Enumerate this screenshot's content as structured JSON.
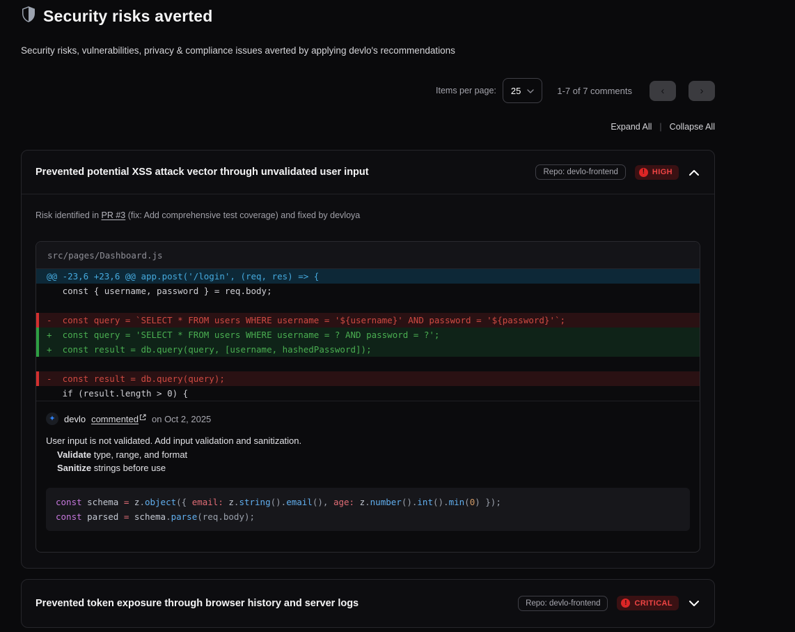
{
  "page": {
    "title": "Security risks averted",
    "subtitle": "Security risks, vulnerabilities, privacy & compliance issues averted by applying devlo's recommendations"
  },
  "toolbar": {
    "items_per_page_label": "Items per page:",
    "page_size": "25",
    "range_text": "1-7 of 7 comments",
    "prev_icon": "‹",
    "next_icon": "›",
    "expand_all": "Expand All",
    "separator": "|",
    "collapse_all": "Collapse All"
  },
  "icons": [
    "shield-icon",
    "chevron-down-icon",
    "chevron-up-icon",
    "chevron-left-icon",
    "chevron-right-icon",
    "alert-circle-icon",
    "external-link-icon",
    "sparkle-avatar-icon"
  ],
  "colors": {
    "severity_red": "#ef4444",
    "added_green": "#3fb950",
    "removed_red": "#d3302f",
    "hunk_blue": "#45a9dd",
    "avatar_blue": "#2f81f7"
  },
  "card1": {
    "title": "Prevented potential XSS attack vector through unvalidated user input",
    "repo_badge": "Repo: devlo-frontend",
    "severity": "HIGH",
    "severity_icon": "!",
    "risk": {
      "prefix": "Risk identified in ",
      "pr_link": "PR #3",
      "suffix": " (fix: Add comprehensive test coverage) and fixed by devloya"
    },
    "diff": {
      "filename": "src/pages/Dashboard.js",
      "lines": [
        {
          "type": "hunk",
          "text": "@@ -23,6 +23,6 @@ app.post('/login', (req, res) => {"
        },
        {
          "type": "ctx",
          "text": "   const { username, password } = req.body;"
        },
        {
          "type": "blank",
          "text": ""
        },
        {
          "type": "removed",
          "text": "-  const query = `SELECT * FROM users WHERE username = '${username}' AND password = '${password}'`;"
        },
        {
          "type": "added",
          "text": "+  const query = 'SELECT * FROM users WHERE username = ? AND password = ?';"
        },
        {
          "type": "added",
          "text": "+  const result = db.query(query, [username, hashedPassword]);"
        },
        {
          "type": "blank",
          "text": ""
        },
        {
          "type": "removed",
          "text": "-  const result = db.query(query);"
        },
        {
          "type": "ctx",
          "text": "   if (result.length > 0) {"
        }
      ]
    },
    "comment": {
      "author": "devlo",
      "action_link": "commented",
      "date_text": "on Oct 2, 2025",
      "body": "User input is not validated. Add input validation and sanitization.",
      "bullets": [
        {
          "bold": "Validate",
          "rest": " type, range, and format"
        },
        {
          "bold": "Sanitize",
          "rest": " strings before use"
        }
      ],
      "code_lines": [
        [
          {
            "t": "const ",
            "c": "kw"
          },
          {
            "t": "schema ",
            "c": "id"
          },
          {
            "t": "= ",
            "c": "op"
          },
          {
            "t": "z",
            "c": "id"
          },
          {
            "t": ".",
            "c": "punct"
          },
          {
            "t": "object",
            "c": "fn"
          },
          {
            "t": "({ ",
            "c": "punct"
          },
          {
            "t": "email:",
            "c": "prop"
          },
          {
            "t": " ",
            "c": "punct"
          },
          {
            "t": "z",
            "c": "id"
          },
          {
            "t": ".",
            "c": "punct"
          },
          {
            "t": "string",
            "c": "fn"
          },
          {
            "t": "()",
            "c": "punct"
          },
          {
            "t": ".",
            "c": "punct"
          },
          {
            "t": "email",
            "c": "fn"
          },
          {
            "t": "(), ",
            "c": "punct"
          },
          {
            "t": "age:",
            "c": "prop"
          },
          {
            "t": " ",
            "c": "punct"
          },
          {
            "t": "z",
            "c": "id"
          },
          {
            "t": ".",
            "c": "punct"
          },
          {
            "t": "number",
            "c": "fn"
          },
          {
            "t": "()",
            "c": "punct"
          },
          {
            "t": ".",
            "c": "punct"
          },
          {
            "t": "int",
            "c": "fn"
          },
          {
            "t": "()",
            "c": "punct"
          },
          {
            "t": ".",
            "c": "punct"
          },
          {
            "t": "min",
            "c": "fn"
          },
          {
            "t": "(",
            "c": "punct"
          },
          {
            "t": "0",
            "c": "num"
          },
          {
            "t": ") });",
            "c": "punct"
          }
        ],
        [
          {
            "t": "const ",
            "c": "kw"
          },
          {
            "t": "parsed ",
            "c": "id"
          },
          {
            "t": "= ",
            "c": "op"
          },
          {
            "t": "schema",
            "c": "id"
          },
          {
            "t": ".",
            "c": "punct"
          },
          {
            "t": "parse",
            "c": "fn"
          },
          {
            "t": "(req.body);",
            "c": "punct"
          }
        ]
      ]
    }
  },
  "card2": {
    "title": "Prevented token exposure through browser history and server logs",
    "repo_badge": "Repo: devlo-frontend",
    "severity": "CRITICAL",
    "severity_icon": "!"
  }
}
